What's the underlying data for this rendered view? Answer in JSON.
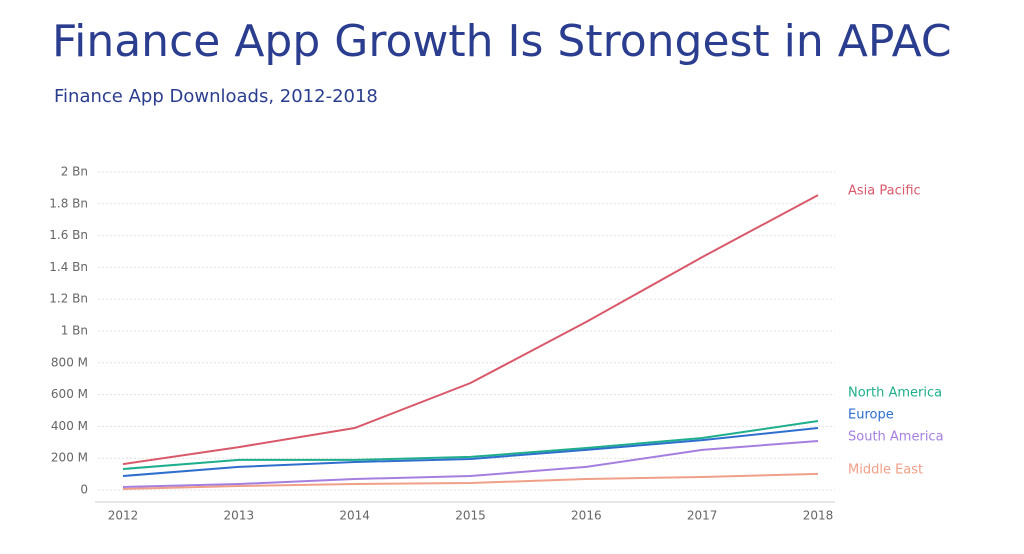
{
  "chart_data": {
    "type": "line",
    "title": "Finance App Growth Is Strongest in APAC",
    "subtitle": "Finance App Downloads, 2012-2018",
    "categories": [
      "2012",
      "2013",
      "2014",
      "2015",
      "2016",
      "2017",
      "2018"
    ],
    "series": [
      {
        "name": "Asia Pacific",
        "color": "#d9596b",
        "values": [
          163,
          270,
          390,
          673,
          1057,
          1465,
          1855
        ]
      },
      {
        "name": "North America",
        "color": "#1fae8c",
        "values": [
          132,
          189,
          189,
          208,
          264,
          327,
          434
        ]
      },
      {
        "name": "Europe",
        "color": "#2e6fce",
        "values": [
          88,
          145,
          176,
          195,
          252,
          314,
          390
        ]
      },
      {
        "name": "South America",
        "color": "#a57fe0",
        "values": [
          19,
          38,
          69,
          88,
          145,
          252,
          308
        ]
      },
      {
        "name": "Middle East",
        "color": "#f0a088",
        "values": [
          6,
          25,
          38,
          44,
          69,
          82,
          101
        ]
      }
    ],
    "ylim": [
      0,
      2000
    ],
    "yticks": [
      0,
      {
        "value": 200,
        "label": "200 M"
      },
      {
        "value": 400,
        "label": "400 M"
      },
      {
        "value": 600,
        "label": "600 M"
      },
      {
        "value": 800,
        "label": "800 M"
      },
      {
        "value": 1000,
        "label": "1 Bn"
      },
      {
        "value": 1200,
        "label": "1.2 Bn"
      },
      {
        "value": 1400,
        "label": "1.4 Bn"
      },
      {
        "value": 1600,
        "label": "1.6 Bn"
      },
      {
        "value": 1800,
        "label": "1.8 Bn"
      },
      {
        "value": 2000,
        "label": "2 Bn"
      }
    ],
    "grid": true
  }
}
